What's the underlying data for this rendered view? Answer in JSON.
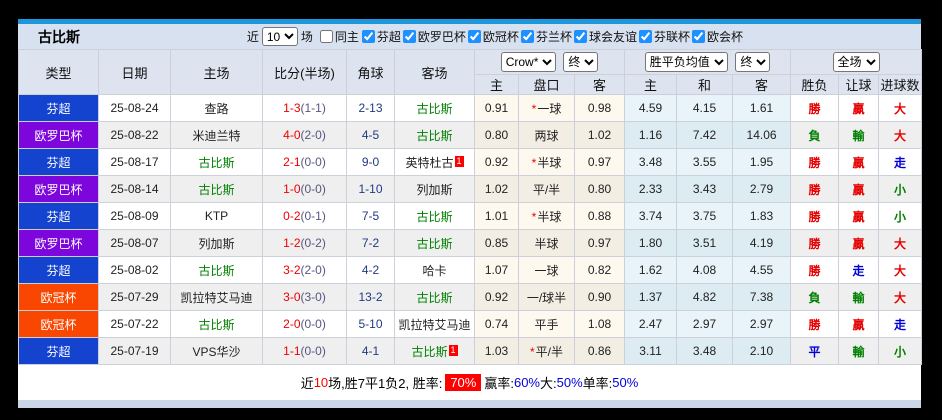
{
  "header": {
    "team_title": "古比斯",
    "recent_label": "近",
    "recent_value": "10",
    "matches_label": "场",
    "same_home_label": "同主",
    "filters": [
      "芬超",
      "欧罗巴杯",
      "欧冠杯",
      "芬兰杯",
      "球会友谊",
      "芬联杯",
      "欧会杯"
    ]
  },
  "table": {
    "columns": [
      "类型",
      "日期",
      "主场",
      "比分(半场)",
      "角球",
      "客场"
    ],
    "selects": {
      "company": "Crow*",
      "company_final": "终",
      "europe": "胜平负均值",
      "europe_final": "终",
      "scope": "全场"
    },
    "sub_columns": [
      "主",
      "盘口",
      "客",
      "主",
      "和",
      "客",
      "胜负",
      "让球",
      "进球数"
    ],
    "rows": [
      {
        "league": "芬超",
        "league_color": "blue",
        "date": "25-08-24",
        "home": "查路",
        "home_green": false,
        "home_card": "",
        "score": "1-3",
        "half": "(1-1)",
        "corner": "2-13",
        "away": "古比斯",
        "away_green": true,
        "away_card": "",
        "ah_home": "0.91",
        "star": true,
        "handicap": "一球",
        "ah_away": "0.98",
        "eu_home": "4.59",
        "eu_draw": "4.15",
        "eu_away": "1.61",
        "result": "勝",
        "result_color": "red",
        "hresult": "贏",
        "hresult_color": "red",
        "goals": "大",
        "goals_color": "red"
      },
      {
        "league": "欧罗巴杯",
        "league_color": "purple",
        "date": "25-08-22",
        "home": "米迪兰特",
        "home_green": false,
        "home_card": "",
        "score": "4-0",
        "half": "(2-0)",
        "corner": "4-5",
        "away": "古比斯",
        "away_green": true,
        "away_card": "",
        "ah_home": "0.80",
        "star": false,
        "handicap": "两球",
        "ah_away": "1.02",
        "eu_home": "1.16",
        "eu_draw": "7.42",
        "eu_away": "14.06",
        "result": "負",
        "result_color": "green",
        "hresult": "輸",
        "hresult_color": "green",
        "goals": "大",
        "goals_color": "red"
      },
      {
        "league": "芬超",
        "league_color": "blue",
        "date": "25-08-17",
        "home": "古比斯",
        "home_green": true,
        "home_card": "",
        "score": "2-1",
        "half": "(0-0)",
        "corner": "9-0",
        "away": "英特杜古",
        "away_green": false,
        "away_card": "1",
        "ah_home": "0.92",
        "star": true,
        "handicap": "半球",
        "ah_away": "0.97",
        "eu_home": "3.48",
        "eu_draw": "3.55",
        "eu_away": "1.95",
        "result": "勝",
        "result_color": "red",
        "hresult": "贏",
        "hresult_color": "red",
        "goals": "走",
        "goals_color": "blue"
      },
      {
        "league": "欧罗巴杯",
        "league_color": "purple",
        "date": "25-08-14",
        "home": "古比斯",
        "home_green": true,
        "home_card": "",
        "score": "1-0",
        "half": "(0-0)",
        "corner": "1-10",
        "away": "列加斯",
        "away_green": false,
        "away_card": "",
        "ah_home": "1.02",
        "star": false,
        "handicap": "平/半",
        "ah_away": "0.80",
        "eu_home": "2.33",
        "eu_draw": "3.43",
        "eu_away": "2.79",
        "result": "勝",
        "result_color": "red",
        "hresult": "贏",
        "hresult_color": "red",
        "goals": "小",
        "goals_color": "green"
      },
      {
        "league": "芬超",
        "league_color": "blue",
        "date": "25-08-09",
        "home": "KTP",
        "home_green": false,
        "home_card": "",
        "score": "0-2",
        "half": "(0-1)",
        "corner": "7-5",
        "away": "古比斯",
        "away_green": true,
        "away_card": "",
        "ah_home": "1.01",
        "star": true,
        "handicap": "半球",
        "ah_away": "0.88",
        "eu_home": "3.74",
        "eu_draw": "3.75",
        "eu_away": "1.83",
        "result": "勝",
        "result_color": "red",
        "hresult": "贏",
        "hresult_color": "red",
        "goals": "小",
        "goals_color": "green"
      },
      {
        "league": "欧罗巴杯",
        "league_color": "purple",
        "date": "25-08-07",
        "home": "列加斯",
        "home_green": false,
        "home_card": "",
        "score": "1-2",
        "half": "(0-2)",
        "corner": "7-2",
        "away": "古比斯",
        "away_green": true,
        "away_card": "",
        "ah_home": "0.85",
        "star": false,
        "handicap": "半球",
        "ah_away": "0.97",
        "eu_home": "1.80",
        "eu_draw": "3.51",
        "eu_away": "4.19",
        "result": "勝",
        "result_color": "red",
        "hresult": "贏",
        "hresult_color": "red",
        "goals": "大",
        "goals_color": "red"
      },
      {
        "league": "芬超",
        "league_color": "blue",
        "date": "25-08-02",
        "home": "古比斯",
        "home_green": true,
        "home_card": "",
        "score": "3-2",
        "half": "(2-0)",
        "corner": "4-2",
        "away": "哈卡",
        "away_green": false,
        "away_card": "",
        "ah_home": "1.07",
        "star": false,
        "handicap": "一球",
        "ah_away": "0.82",
        "eu_home": "1.62",
        "eu_draw": "4.08",
        "eu_away": "4.55",
        "result": "勝",
        "result_color": "red",
        "hresult": "走",
        "hresult_color": "blue",
        "goals": "大",
        "goals_color": "red"
      },
      {
        "league": "欧冠杯",
        "league_color": "orange",
        "date": "25-07-29",
        "home": "凯拉特艾马迪",
        "home_green": false,
        "home_card": "",
        "score": "3-0",
        "half": "(3-0)",
        "corner": "13-2",
        "away": "古比斯",
        "away_green": true,
        "away_card": "",
        "ah_home": "0.92",
        "star": false,
        "handicap": "一/球半",
        "ah_away": "0.90",
        "eu_home": "1.37",
        "eu_draw": "4.82",
        "eu_away": "7.38",
        "result": "負",
        "result_color": "green",
        "hresult": "輸",
        "hresult_color": "green",
        "goals": "大",
        "goals_color": "red"
      },
      {
        "league": "欧冠杯",
        "league_color": "orange",
        "date": "25-07-22",
        "home": "古比斯",
        "home_green": true,
        "home_card": "",
        "score": "2-0",
        "half": "(0-0)",
        "corner": "5-10",
        "away": "凯拉特艾马迪",
        "away_green": false,
        "away_card": "",
        "ah_home": "0.74",
        "star": false,
        "handicap": "平手",
        "ah_away": "1.08",
        "eu_home": "2.47",
        "eu_draw": "2.97",
        "eu_away": "2.97",
        "result": "勝",
        "result_color": "red",
        "hresult": "贏",
        "hresult_color": "red",
        "goals": "走",
        "goals_color": "blue"
      },
      {
        "league": "芬超",
        "league_color": "blue",
        "date": "25-07-19",
        "home": "VPS华沙",
        "home_green": false,
        "home_card": "",
        "score": "1-1",
        "half": "(0-0)",
        "corner": "4-1",
        "away": "古比斯",
        "away_green": true,
        "away_card": "1",
        "ah_home": "1.03",
        "star": true,
        "handicap": "平/半",
        "ah_away": "0.86",
        "eu_home": "3.11",
        "eu_draw": "3.48",
        "eu_away": "2.10",
        "result": "平",
        "result_color": "blue",
        "hresult": "輸",
        "hresult_color": "green",
        "goals": "小",
        "goals_color": "green"
      }
    ]
  },
  "footer": {
    "segments": [
      {
        "text": "近",
        "style": "plain"
      },
      {
        "text": "10",
        "style": "red"
      },
      {
        "text": "场,胜7平1负2, 胜率:",
        "style": "plain"
      },
      {
        "text": "70%",
        "style": "redbox"
      },
      {
        "text": " 赢率:",
        "style": "plain"
      },
      {
        "text": "60%",
        "style": "blue"
      },
      {
        "text": " 大:",
        "style": "plain"
      },
      {
        "text": "50%",
        "style": "blue"
      },
      {
        "text": " 单率:",
        "style": "plain"
      },
      {
        "text": "50%",
        "style": "blue"
      }
    ]
  }
}
